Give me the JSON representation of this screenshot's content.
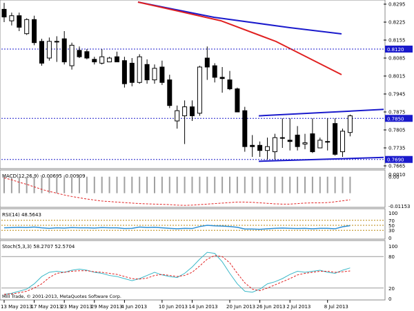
{
  "window": {
    "copyright": "MIII Trade, © 2001-2013, MetaQuotes Software Corp."
  },
  "colors": {
    "background": "#ffffff",
    "grid": "#c8c8c8",
    "text": "#000000",
    "bull_body": "#ffffff",
    "bear_body": "#000000",
    "ma_fast": "#e02020",
    "ma_slow": "#1a1acc",
    "channel": "#1a1acc",
    "hline": "#1a1acc",
    "macd_hist": "#a0a0a0",
    "macd_signal": "#e02020",
    "rsi_line": "#2b8fd6",
    "rsi_level": "#b8860b",
    "stoch_main": "#3ab8c8",
    "stoch_signal": "#e02020",
    "label_bg": "#1a1acc",
    "label_text": "#ffffff"
  },
  "price_panel": {
    "y_axis_ticks": [
      "0.8295",
      "0.8225",
      "0.8155",
      "0.8085",
      "0.8015",
      "0.7945",
      "0.7875",
      "0.7805",
      "0.7735",
      "0.7665"
    ],
    "horizontal_lines": [
      {
        "label": "0.8120",
        "value": 0.812
      },
      {
        "label": "0.7850",
        "value": 0.785
      },
      {
        "label": "0.7690",
        "value": 0.769
      }
    ]
  },
  "macd_panel": {
    "title": "MACD(12,26,9) -0.00695 -0.00909",
    "y_axis_ticks": [
      "0.0010",
      "0.00",
      "-0.01153"
    ]
  },
  "rsi_panel": {
    "title": "RSI(14) 48.5643",
    "y_axis_ticks": [
      "100",
      "70",
      "50",
      "30",
      "0"
    ]
  },
  "stoch_panel": {
    "title": "Stoch(5,3,3) 58.2707 52.5704",
    "y_axis_ticks": [
      "100",
      "80",
      "20",
      "0"
    ]
  },
  "x_axis": {
    "labels": [
      "13 May 2013",
      "17 May 2013",
      "23 May 2013",
      "29 May 2013",
      "4 Jun 2013",
      "10 Jun 2013",
      "14 Jun 2013",
      "20 Jun 2013",
      "26 Jun 2013",
      "2 Jul 2013",
      "8 Jul 2013"
    ]
  },
  "chart_data": [
    {
      "type": "candlestick",
      "title": "",
      "y_range": [
        0.7665,
        0.8295
      ],
      "candles": [
        {
          "o": 0.8275,
          "h": 0.83,
          "l": 0.8225,
          "c": 0.8245
        },
        {
          "o": 0.823,
          "h": 0.8262,
          "l": 0.8212,
          "c": 0.825
        },
        {
          "o": 0.825,
          "h": 0.8262,
          "l": 0.819,
          "c": 0.8205
        },
        {
          "o": 0.818,
          "h": 0.824,
          "l": 0.8175,
          "c": 0.8235
        },
        {
          "o": 0.8235,
          "h": 0.825,
          "l": 0.8135,
          "c": 0.8145
        },
        {
          "o": 0.815,
          "h": 0.816,
          "l": 0.8055,
          "c": 0.8065
        },
        {
          "o": 0.8085,
          "h": 0.8165,
          "l": 0.8075,
          "c": 0.815
        },
        {
          "o": 0.815,
          "h": 0.817,
          "l": 0.807,
          "c": 0.815
        },
        {
          "o": 0.816,
          "h": 0.819,
          "l": 0.806,
          "c": 0.807
        },
        {
          "o": 0.8055,
          "h": 0.8145,
          "l": 0.804,
          "c": 0.8135
        },
        {
          "o": 0.8115,
          "h": 0.813,
          "l": 0.8085,
          "c": 0.809
        },
        {
          "o": 0.811,
          "h": 0.812,
          "l": 0.808,
          "c": 0.8085
        },
        {
          "o": 0.808,
          "h": 0.809,
          "l": 0.806,
          "c": 0.807
        },
        {
          "o": 0.8065,
          "h": 0.812,
          "l": 0.806,
          "c": 0.809
        },
        {
          "o": 0.807,
          "h": 0.809,
          "l": 0.807,
          "c": 0.8085
        },
        {
          "o": 0.809,
          "h": 0.811,
          "l": 0.807,
          "c": 0.807
        },
        {
          "o": 0.8075,
          "h": 0.809,
          "l": 0.797,
          "c": 0.7985
        },
        {
          "o": 0.8065,
          "h": 0.8085,
          "l": 0.7975,
          "c": 0.799
        },
        {
          "o": 0.799,
          "h": 0.81,
          "l": 0.7985,
          "c": 0.809
        },
        {
          "o": 0.806,
          "h": 0.808,
          "l": 0.7985,
          "c": 0.8
        },
        {
          "o": 0.8,
          "h": 0.806,
          "l": 0.7985,
          "c": 0.8045
        },
        {
          "o": 0.805,
          "h": 0.8075,
          "l": 0.798,
          "c": 0.799
        },
        {
          "o": 0.8,
          "h": 0.802,
          "l": 0.789,
          "c": 0.79
        },
        {
          "o": 0.784,
          "h": 0.79,
          "l": 0.781,
          "c": 0.788
        },
        {
          "o": 0.786,
          "h": 0.792,
          "l": 0.775,
          "c": 0.7895
        },
        {
          "o": 0.7895,
          "h": 0.792,
          "l": 0.784,
          "c": 0.786
        },
        {
          "o": 0.787,
          "h": 0.8055,
          "l": 0.786,
          "c": 0.805
        },
        {
          "o": 0.8085,
          "h": 0.813,
          "l": 0.8,
          "c": 0.805
        },
        {
          "o": 0.8055,
          "h": 0.8065,
          "l": 0.799,
          "c": 0.801
        },
        {
          "o": 0.801,
          "h": 0.805,
          "l": 0.795,
          "c": 0.8005
        },
        {
          "o": 0.8,
          "h": 0.8035,
          "l": 0.796,
          "c": 0.7965
        },
        {
          "o": 0.7965,
          "h": 0.797,
          "l": 0.7875,
          "c": 0.7875
        },
        {
          "o": 0.788,
          "h": 0.7895,
          "l": 0.772,
          "c": 0.774
        },
        {
          "o": 0.7745,
          "h": 0.7785,
          "l": 0.77,
          "c": 0.774
        },
        {
          "o": 0.7745,
          "h": 0.776,
          "l": 0.77,
          "c": 0.7725
        },
        {
          "o": 0.7725,
          "h": 0.7775,
          "l": 0.769,
          "c": 0.774
        },
        {
          "o": 0.772,
          "h": 0.779,
          "l": 0.769,
          "c": 0.7775
        },
        {
          "o": 0.7775,
          "h": 0.785,
          "l": 0.7735,
          "c": 0.7775
        },
        {
          "o": 0.7765,
          "h": 0.785,
          "l": 0.7725,
          "c": 0.776
        },
        {
          "o": 0.7785,
          "h": 0.782,
          "l": 0.7725,
          "c": 0.774
        },
        {
          "o": 0.775,
          "h": 0.779,
          "l": 0.773,
          "c": 0.7755
        },
        {
          "o": 0.779,
          "h": 0.785,
          "l": 0.7715,
          "c": 0.772
        },
        {
          "o": 0.7735,
          "h": 0.7775,
          "l": 0.7735,
          "c": 0.7765
        },
        {
          "o": 0.776,
          "h": 0.785,
          "l": 0.7725,
          "c": 0.776
        },
        {
          "o": 0.783,
          "h": 0.785,
          "l": 0.7705,
          "c": 0.771
        },
        {
          "o": 0.772,
          "h": 0.781,
          "l": 0.77,
          "c": 0.78
        },
        {
          "o": 0.7795,
          "h": 0.7865,
          "l": 0.778,
          "c": 0.786
        }
      ]
    },
    {
      "type": "line",
      "title": "MACD(12,26,9) -0.00695 -0.00909",
      "histogram": [
        0.0,
        0.0,
        0.0,
        0.0,
        0.0,
        0.0,
        0.0,
        0.0,
        0.0,
        0.0,
        0.0,
        0.0,
        0.0,
        0.0,
        0.0,
        0.0,
        0.0,
        0.0,
        0.0,
        0.0,
        0.0,
        0.0,
        0.0,
        0.0,
        0.0,
        0.0,
        0.0,
        0.0,
        0.0,
        0.0,
        0.0,
        0.0,
        0.0,
        0.0,
        0.0,
        0.0,
        0.0,
        0.0,
        0.0,
        0.0,
        0.0,
        0.0,
        0.0,
        0.0,
        0.0,
        0.0,
        0.0
      ],
      "signal": [
        -0.0005,
        -0.0012,
        -0.0022,
        -0.003,
        -0.004,
        -0.005,
        -0.0058,
        -0.0065,
        -0.0072,
        -0.0078,
        -0.0083,
        -0.0088,
        -0.0092,
        -0.0096,
        -0.0098,
        -0.01,
        -0.0102,
        -0.0104,
        -0.0106,
        -0.0107,
        -0.0108,
        -0.0109,
        -0.011,
        -0.0112,
        -0.0113,
        -0.0112,
        -0.011,
        -0.0108,
        -0.0106,
        -0.0104,
        -0.0102,
        -0.01,
        -0.01,
        -0.0101,
        -0.0103,
        -0.0105,
        -0.0107,
        -0.0108,
        -0.0108,
        -0.0106,
        -0.0104,
        -0.0103,
        -0.0103,
        -0.0102,
        -0.0099,
        -0.0095,
        -0.0091
      ],
      "y_range": [
        -0.01153,
        0.001
      ]
    },
    {
      "type": "line",
      "title": "RSI(14) 48.5643",
      "values": [
        40,
        41,
        42,
        41,
        43,
        40,
        38,
        40,
        39,
        41,
        40,
        40,
        39,
        41,
        40,
        40,
        37,
        38,
        43,
        41,
        42,
        40,
        38,
        36,
        38,
        37,
        45,
        50,
        48,
        47,
        45,
        42,
        35,
        35,
        34,
        36,
        38,
        39,
        38,
        37,
        38,
        36,
        38,
        38,
        36,
        44,
        48.6
      ],
      "levels": [
        70,
        50,
        30
      ],
      "y_range": [
        0,
        100
      ]
    },
    {
      "type": "line",
      "title": "Stoch(5,3,3) 58.2707 52.5704",
      "main": [
        8,
        10,
        14,
        18,
        28,
        42,
        50,
        52,
        50,
        54,
        56,
        54,
        50,
        48,
        44,
        42,
        38,
        34,
        38,
        44,
        50,
        45,
        42,
        40,
        48,
        60,
        75,
        88,
        86,
        70,
        48,
        28,
        14,
        12,
        18,
        28,
        32,
        38,
        46,
        52,
        50,
        52,
        54,
        50,
        48,
        54,
        58.3
      ],
      "signal": [
        8,
        9,
        11,
        14,
        20,
        28,
        40,
        48,
        50,
        52,
        53,
        53,
        51,
        50,
        48,
        46,
        42,
        38,
        37,
        39,
        44,
        46,
        44,
        42,
        44,
        50,
        62,
        75,
        82,
        80,
        68,
        48,
        30,
        18,
        15,
        20,
        26,
        32,
        38,
        45,
        48,
        50,
        52,
        52,
        50,
        51,
        52.6
      ],
      "levels": [
        80,
        20
      ],
      "y_range": [
        0,
        100
      ]
    }
  ]
}
